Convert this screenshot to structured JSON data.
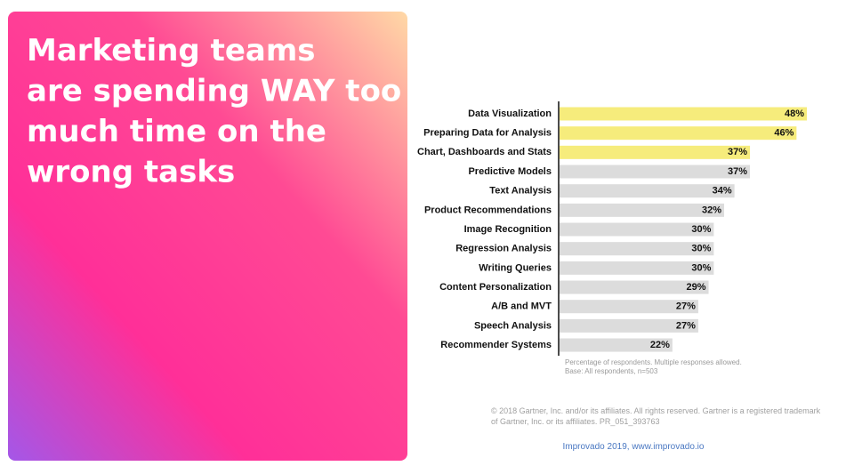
{
  "headline_lines": [
    "Marketing teams",
    "are spending WAY too",
    "much time on the",
    "wrong tasks"
  ],
  "chart_data": {
    "type": "bar",
    "orientation": "horizontal",
    "categories": [
      "Data Visualization",
      "Preparing Data for Analysis",
      "Chart, Dashboards and Stats",
      "Predictive Models",
      "Text Analysis",
      "Product Recommendations",
      "Image Recognition",
      "Regression Analysis",
      "Writing Queries",
      "Content Personalization",
      "A/B and MVT",
      "Speech Analysis",
      "Recommender Systems"
    ],
    "values": [
      48,
      46,
      37,
      37,
      34,
      32,
      30,
      30,
      30,
      29,
      27,
      27,
      22
    ],
    "value_labels": [
      "48%",
      "46%",
      "37%",
      "37%",
      "34%",
      "32%",
      "30%",
      "30%",
      "30%",
      "29%",
      "27%",
      "27%",
      "22%"
    ],
    "colors": [
      "#f6ec7c",
      "#f6ec7c",
      "#f6ec7c",
      "#dcdcdc",
      "#dcdcdc",
      "#dcdcdc",
      "#dcdcdc",
      "#dcdcdc",
      "#dcdcdc",
      "#dcdcdc",
      "#dcdcdc",
      "#dcdcdc",
      "#dcdcdc"
    ],
    "notes": [
      "Percentage of respondents. Multiple responses allowed.",
      "Base: All respondents, n=503"
    ]
  },
  "copyright": [
    "© 2018 Gartner, Inc. and/or its affiliates. All rights reserved. Gartner is a registered trademark",
    "of Gartner, Inc. or its affiliates. PR_051_393763"
  ],
  "footer": "Improvado 2019, www.improvado.io"
}
